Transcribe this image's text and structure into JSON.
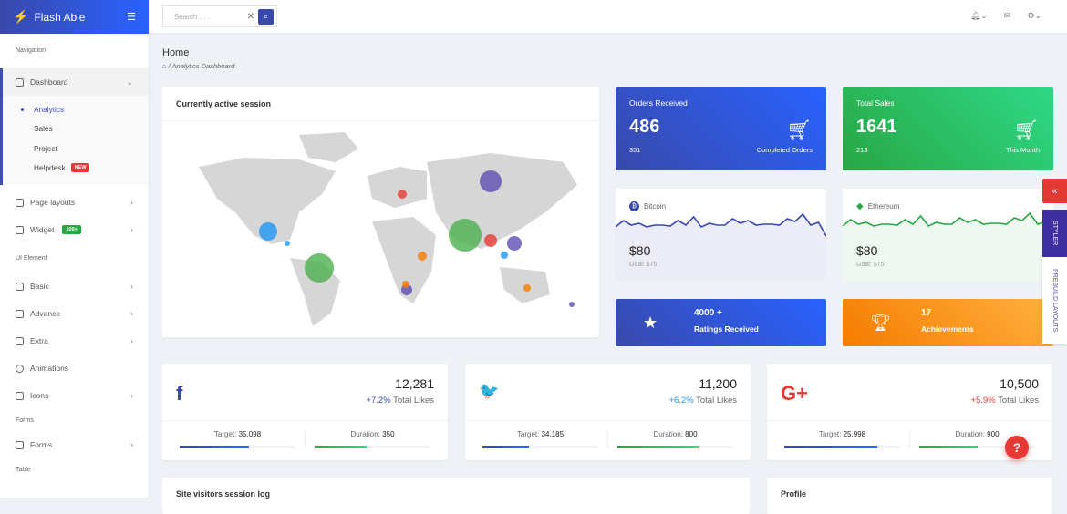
{
  "brand": {
    "name": "Flash Able"
  },
  "search": {
    "placeholder": "Search . . ."
  },
  "sidebar": {
    "captions": [
      "Navigation",
      "UI Element",
      "Forms",
      "Table"
    ],
    "dashboard": "Dashboard",
    "sub": [
      "Analytics",
      "Sales",
      "Project",
      "Helpdesk"
    ],
    "new_badge": "NEW",
    "items": [
      "Page layouts",
      "Widget",
      "Basic",
      "Advance",
      "Extra",
      "Animations",
      "Icons",
      "Forms"
    ],
    "widget_badge": "100+"
  },
  "page": {
    "title": "Home",
    "breadcrumb": "Analytics Dashboard"
  },
  "map_card": {
    "title": "Currently active session"
  },
  "orders": {
    "title": "Orders Received",
    "value": "486",
    "sub_value": "351",
    "sub_label": "Completed Orders",
    "color": "#2962ff"
  },
  "sales": {
    "title": "Total Sales",
    "value": "1641",
    "sub_value": "213",
    "sub_label": "This Month",
    "color": "#2ed8b6"
  },
  "bitcoin": {
    "name": "Bitcoin",
    "value": "$80",
    "goal": "Goal: $75",
    "color": "#3949ab"
  },
  "ethereum": {
    "name": "Ethereum",
    "value": "$80",
    "goal": "Goal: $75",
    "color": "#28a745"
  },
  "ratings": {
    "value": "4000 +",
    "label": "Ratings Received"
  },
  "achievements": {
    "value": "17",
    "label": "Achievements"
  },
  "social": [
    {
      "icon": "facebook-icon",
      "glyph": "f",
      "count": "12,281",
      "pct": "+7.2%",
      "pct_label": "Total Likes",
      "color": "#3949ab",
      "target": "35,098",
      "duration": "350",
      "target_progress": 60,
      "duration_progress": 45,
      "target_label": "Target:",
      "duration_label": "Duration:"
    },
    {
      "icon": "twitter-icon",
      "glyph": "🐦",
      "count": "11,200",
      "pct": "+6.2%",
      "pct_label": "Total Likes",
      "color": "#2196f3",
      "target": "34,185",
      "duration": "800",
      "target_progress": 40,
      "duration_progress": 70,
      "target_label": "Target:",
      "duration_label": "Duration:"
    },
    {
      "icon": "google-plus-icon",
      "glyph": "G+",
      "count": "10,500",
      "pct": "+5.9%",
      "pct_label": "Total Likes",
      "color": "#e53935",
      "target": "25,998",
      "duration": "900",
      "target_progress": 80,
      "duration_progress": 50,
      "target_label": "Target:",
      "duration_label": "Duration:"
    }
  ],
  "bottom": {
    "visitors": "Site visitors session log",
    "profile": "Profile"
  },
  "side_tabs": {
    "styler": "STYLER",
    "prebuild": "PREBUILD LAYOUTS"
  }
}
